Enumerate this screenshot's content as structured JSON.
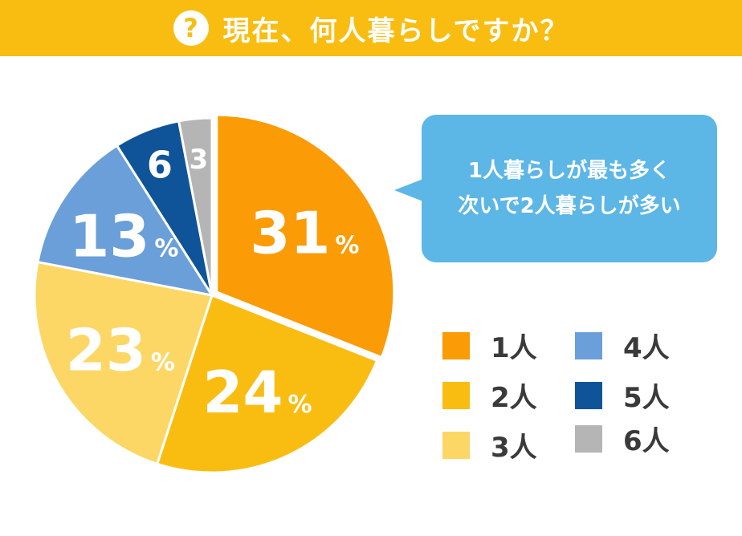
{
  "header": {
    "title": "現在、何人暮らしですか？",
    "icon": "question-icon",
    "icon_glyph": "?",
    "bg_color": "#f9bd12"
  },
  "chart_data": {
    "type": "pie",
    "start_angle_deg": 0,
    "direction": "clockwise",
    "exploded_slice": "1人",
    "percent_symbol": "%",
    "slices": [
      {
        "category": "1人",
        "value": 31,
        "label": "31",
        "show_percent": true,
        "color": "#fb9b05"
      },
      {
        "category": "2人",
        "value": 24,
        "label": "24",
        "show_percent": true,
        "color": "#f9bd12"
      },
      {
        "category": "3人",
        "value": 23,
        "label": "23",
        "show_percent": true,
        "color": "#fcd765"
      },
      {
        "category": "4人",
        "value": 13,
        "label": "13",
        "show_percent": true,
        "color": "#6a9fd9"
      },
      {
        "category": "5人",
        "value": 6,
        "label": "6",
        "show_percent": false,
        "color": "#0f5499"
      },
      {
        "category": "6人",
        "value": 3,
        "label": "3",
        "show_percent": false,
        "color": "#b5b5b5"
      }
    ]
  },
  "callout": {
    "line1": "1人暮らしが最も多く",
    "line2": "次いで2人暮らしが多い",
    "bg_color": "#5cb6e6"
  },
  "legend": {
    "items": [
      {
        "label": "1人",
        "color": "#fb9b05"
      },
      {
        "label": "2人",
        "color": "#f9bd12"
      },
      {
        "label": "3人",
        "color": "#fcd765"
      },
      {
        "label": "4人",
        "color": "#6a9fd9"
      },
      {
        "label": "5人",
        "color": "#0f5499"
      },
      {
        "label": "6人",
        "color": "#b5b5b5"
      }
    ]
  }
}
